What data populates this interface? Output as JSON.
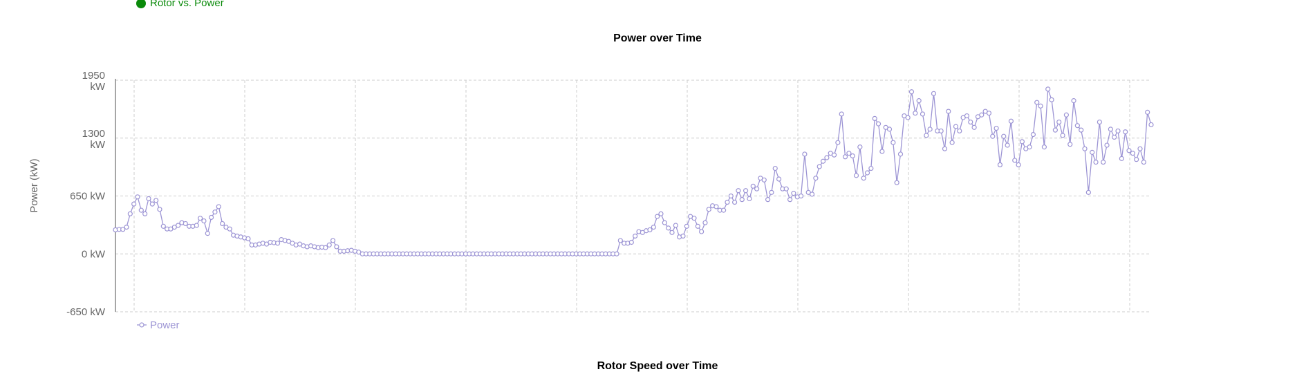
{
  "top_legend": {
    "label": "Rotor vs. Power",
    "color": "#0a8a0a"
  },
  "next_chart_title": "Rotor Speed over Time",
  "colors": {
    "series": "#9c94d4",
    "grid": "#cccccc",
    "axis": "#888888",
    "tick_text": "#666666"
  },
  "chart_data": {
    "type": "line",
    "title": "Power over Time",
    "xlabel": "",
    "ylabel": "Power (kW)",
    "ylim": [
      -650,
      1950
    ],
    "grid": true,
    "legend_placement": "bottom-left",
    "y_ticks": [
      {
        "value": 1950,
        "label": "1950 kW"
      },
      {
        "value": 1300,
        "label": "1300 kW"
      },
      {
        "value": 650,
        "label": "650 kW"
      },
      {
        "value": 0,
        "label": "0 kW"
      },
      {
        "value": -650,
        "label": "-650 kW"
      }
    ],
    "x_grid_count": 10,
    "series": [
      {
        "name": "Power",
        "values": [
          270,
          275,
          275,
          300,
          450,
          560,
          640,
          490,
          450,
          620,
          560,
          600,
          500,
          310,
          280,
          280,
          300,
          320,
          350,
          340,
          310,
          310,
          320,
          400,
          370,
          230,
          410,
          470,
          530,
          340,
          300,
          280,
          210,
          200,
          190,
          180,
          170,
          100,
          100,
          110,
          120,
          110,
          130,
          125,
          120,
          160,
          150,
          140,
          120,
          100,
          110,
          90,
          80,
          90,
          80,
          70,
          75,
          70,
          100,
          150,
          80,
          30,
          30,
          35,
          40,
          30,
          20,
          0,
          0,
          0,
          0,
          0,
          0,
          0,
          0,
          0,
          0,
          0,
          0,
          0,
          0,
          0,
          0,
          0,
          0,
          0,
          0,
          0,
          0,
          0,
          0,
          0,
          0,
          0,
          0,
          0,
          0,
          0,
          0,
          0,
          0,
          0,
          0,
          0,
          0,
          0,
          0,
          0,
          0,
          0,
          0,
          0,
          0,
          0,
          0,
          0,
          0,
          0,
          0,
          0,
          0,
          0,
          0,
          0,
          0,
          0,
          0,
          0,
          0,
          0,
          0,
          0,
          0,
          0,
          0,
          0,
          0,
          150,
          120,
          120,
          130,
          200,
          250,
          240,
          260,
          270,
          300,
          420,
          450,
          350,
          290,
          240,
          320,
          190,
          200,
          310,
          420,
          400,
          310,
          250,
          350,
          500,
          540,
          530,
          490,
          490,
          580,
          650,
          580,
          710,
          610,
          710,
          620,
          760,
          730,
          850,
          830,
          610,
          690,
          960,
          840,
          730,
          730,
          610,
          680,
          640,
          650,
          1120,
          690,
          670,
          850,
          980,
          1040,
          1080,
          1130,
          1110,
          1250,
          1570,
          1090,
          1130,
          1100,
          880,
          1200,
          850,
          910,
          960,
          1520,
          1460,
          1150,
          1420,
          1400,
          1250,
          800,
          1120,
          1550,
          1530,
          1820,
          1580,
          1720,
          1570,
          1330,
          1400,
          1800,
          1380,
          1380,
          1180,
          1600,
          1250,
          1430,
          1380,
          1530,
          1550,
          1480,
          1420,
          1540,
          1560,
          1600,
          1580,
          1320,
          1410,
          1000,
          1320,
          1220,
          1490,
          1050,
          1000,
          1260,
          1180,
          1200,
          1340,
          1700,
          1660,
          1200,
          1850,
          1730,
          1390,
          1480,
          1330,
          1560,
          1230,
          1720,
          1440,
          1390,
          1180,
          690,
          1140,
          1030,
          1480,
          1030,
          1220,
          1400,
          1310,
          1380,
          1070,
          1370,
          1160,
          1130,
          1060,
          1180,
          1030,
          1590,
          1450
        ]
      }
    ]
  }
}
